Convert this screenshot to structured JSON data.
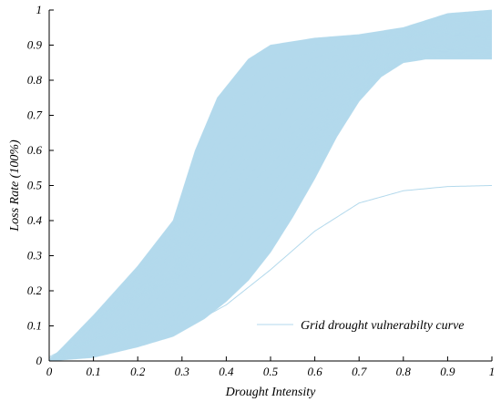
{
  "chart_data": {
    "type": "line",
    "xlabel": "Drought Intensity",
    "ylabel": "Loss Rate (100%)",
    "xlim": [
      0,
      1
    ],
    "ylim": [
      0,
      1
    ],
    "x_ticks": [
      "0",
      "0.1",
      "0.2",
      "0.3",
      "0.4",
      "0.5",
      "0.6",
      "0.7",
      "0.8",
      "0.9",
      "1"
    ],
    "y_ticks": [
      "0",
      "0.1",
      "0.2",
      "0.3",
      "0.4",
      "0.5",
      "0.6",
      "0.7",
      "0.8",
      "0.9",
      "1"
    ],
    "grid": false,
    "legend_position": "bottom-right",
    "series_color": "#b3d9ec",
    "series": [
      {
        "name": "Grid drought vulnerabilty curve",
        "description_bands": {
          "upper_envelope": {
            "x": [
              0,
              0.1,
              0.2,
              0.28,
              0.33,
              0.38,
              0.45,
              0.5,
              0.6,
              0.7,
              0.8,
              0.9,
              1
            ],
            "y": [
              0,
              0.13,
              0.27,
              0.4,
              0.6,
              0.75,
              0.86,
              0.9,
              0.92,
              0.93,
              0.95,
              0.99,
              1
            ]
          },
          "lower_envelope": {
            "x": [
              0,
              0.1,
              0.2,
              0.28,
              0.35,
              0.4,
              0.45,
              0.5,
              0.55,
              0.6,
              0.65,
              0.7,
              0.75,
              0.8,
              0.85,
              1
            ],
            "y": [
              0,
              0.01,
              0.04,
              0.07,
              0.12,
              0.17,
              0.23,
              0.31,
              0.41,
              0.52,
              0.64,
              0.74,
              0.81,
              0.85,
              0.86,
              0.86
            ]
          }
        },
        "outlier_curve": {
          "x": [
            0,
            0.1,
            0.2,
            0.3,
            0.4,
            0.5,
            0.6,
            0.7,
            0.8,
            0.9,
            1
          ],
          "y": [
            0,
            0.015,
            0.045,
            0.09,
            0.16,
            0.26,
            0.37,
            0.45,
            0.485,
            0.497,
            0.5
          ]
        }
      }
    ]
  }
}
